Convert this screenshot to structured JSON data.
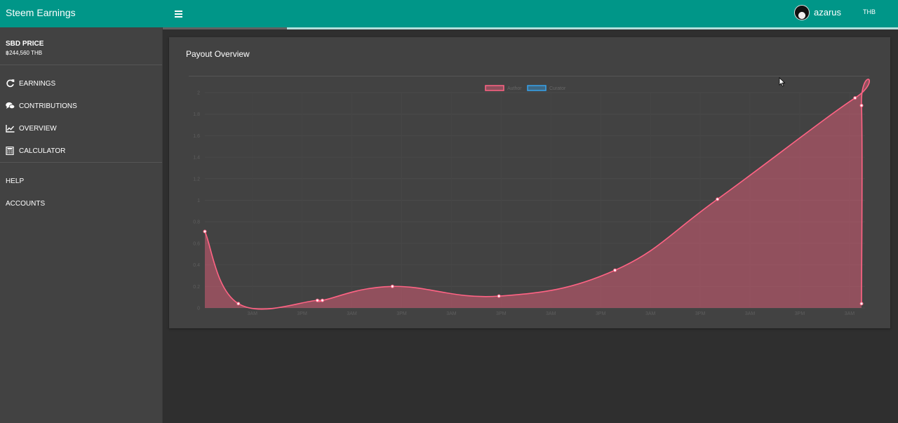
{
  "header": {
    "app_title": "Steem Earnings",
    "username": "azarus",
    "currency": "THB",
    "menu_icon": "hamburger-icon",
    "progress_fraction": 0.17
  },
  "sidebar": {
    "price_title": "SBD PRICE",
    "price_value": "฿244,560 THB",
    "items": [
      {
        "label": "EARNINGS",
        "icon": "refresh-icon"
      },
      {
        "label": "CONTRIBUTIONS",
        "icon": "comments-icon"
      },
      {
        "label": "OVERVIEW",
        "icon": "line-chart-icon"
      },
      {
        "label": "CALCULATOR",
        "icon": "calculator-icon"
      },
      {
        "label": "HELP",
        "icon": ""
      },
      {
        "label": "ACCOUNTS",
        "icon": ""
      }
    ]
  },
  "card": {
    "title": "Payout Overview"
  },
  "colors": {
    "primary": "#009688",
    "author": "#ff6384",
    "curator": "#36a2eb"
  },
  "chart_data": {
    "type": "area",
    "title": "",
    "legend": [
      "Author",
      "Curator"
    ],
    "legend_position": "top-center",
    "grid": true,
    "ylim": [
      0,
      2.0
    ],
    "yticks": [
      0,
      0.2,
      0.4,
      0.6,
      0.8,
      1.0,
      1.2,
      1.4,
      1.6,
      1.8,
      2.0
    ],
    "xticks": [
      "3AM",
      "3PM",
      "3AM",
      "3PM",
      "3AM",
      "3PM",
      "3AM",
      "3PM",
      "3AM",
      "3PM",
      "3AM",
      "3PM",
      "3AM"
    ],
    "series": [
      {
        "name": "Author",
        "points": [
          [
            0.0,
            0.71
          ],
          [
            6.7,
            0.04
          ],
          [
            22.5,
            0.07
          ],
          [
            23.5,
            0.07
          ],
          [
            37.5,
            0.2
          ],
          [
            58.8,
            0.11
          ],
          [
            82.0,
            0.35
          ],
          [
            102.5,
            1.01
          ],
          [
            130.0,
            1.95
          ],
          [
            131.3,
            1.88
          ],
          [
            131.3,
            0.04
          ]
        ]
      },
      {
        "name": "Curator",
        "points": []
      }
    ]
  }
}
